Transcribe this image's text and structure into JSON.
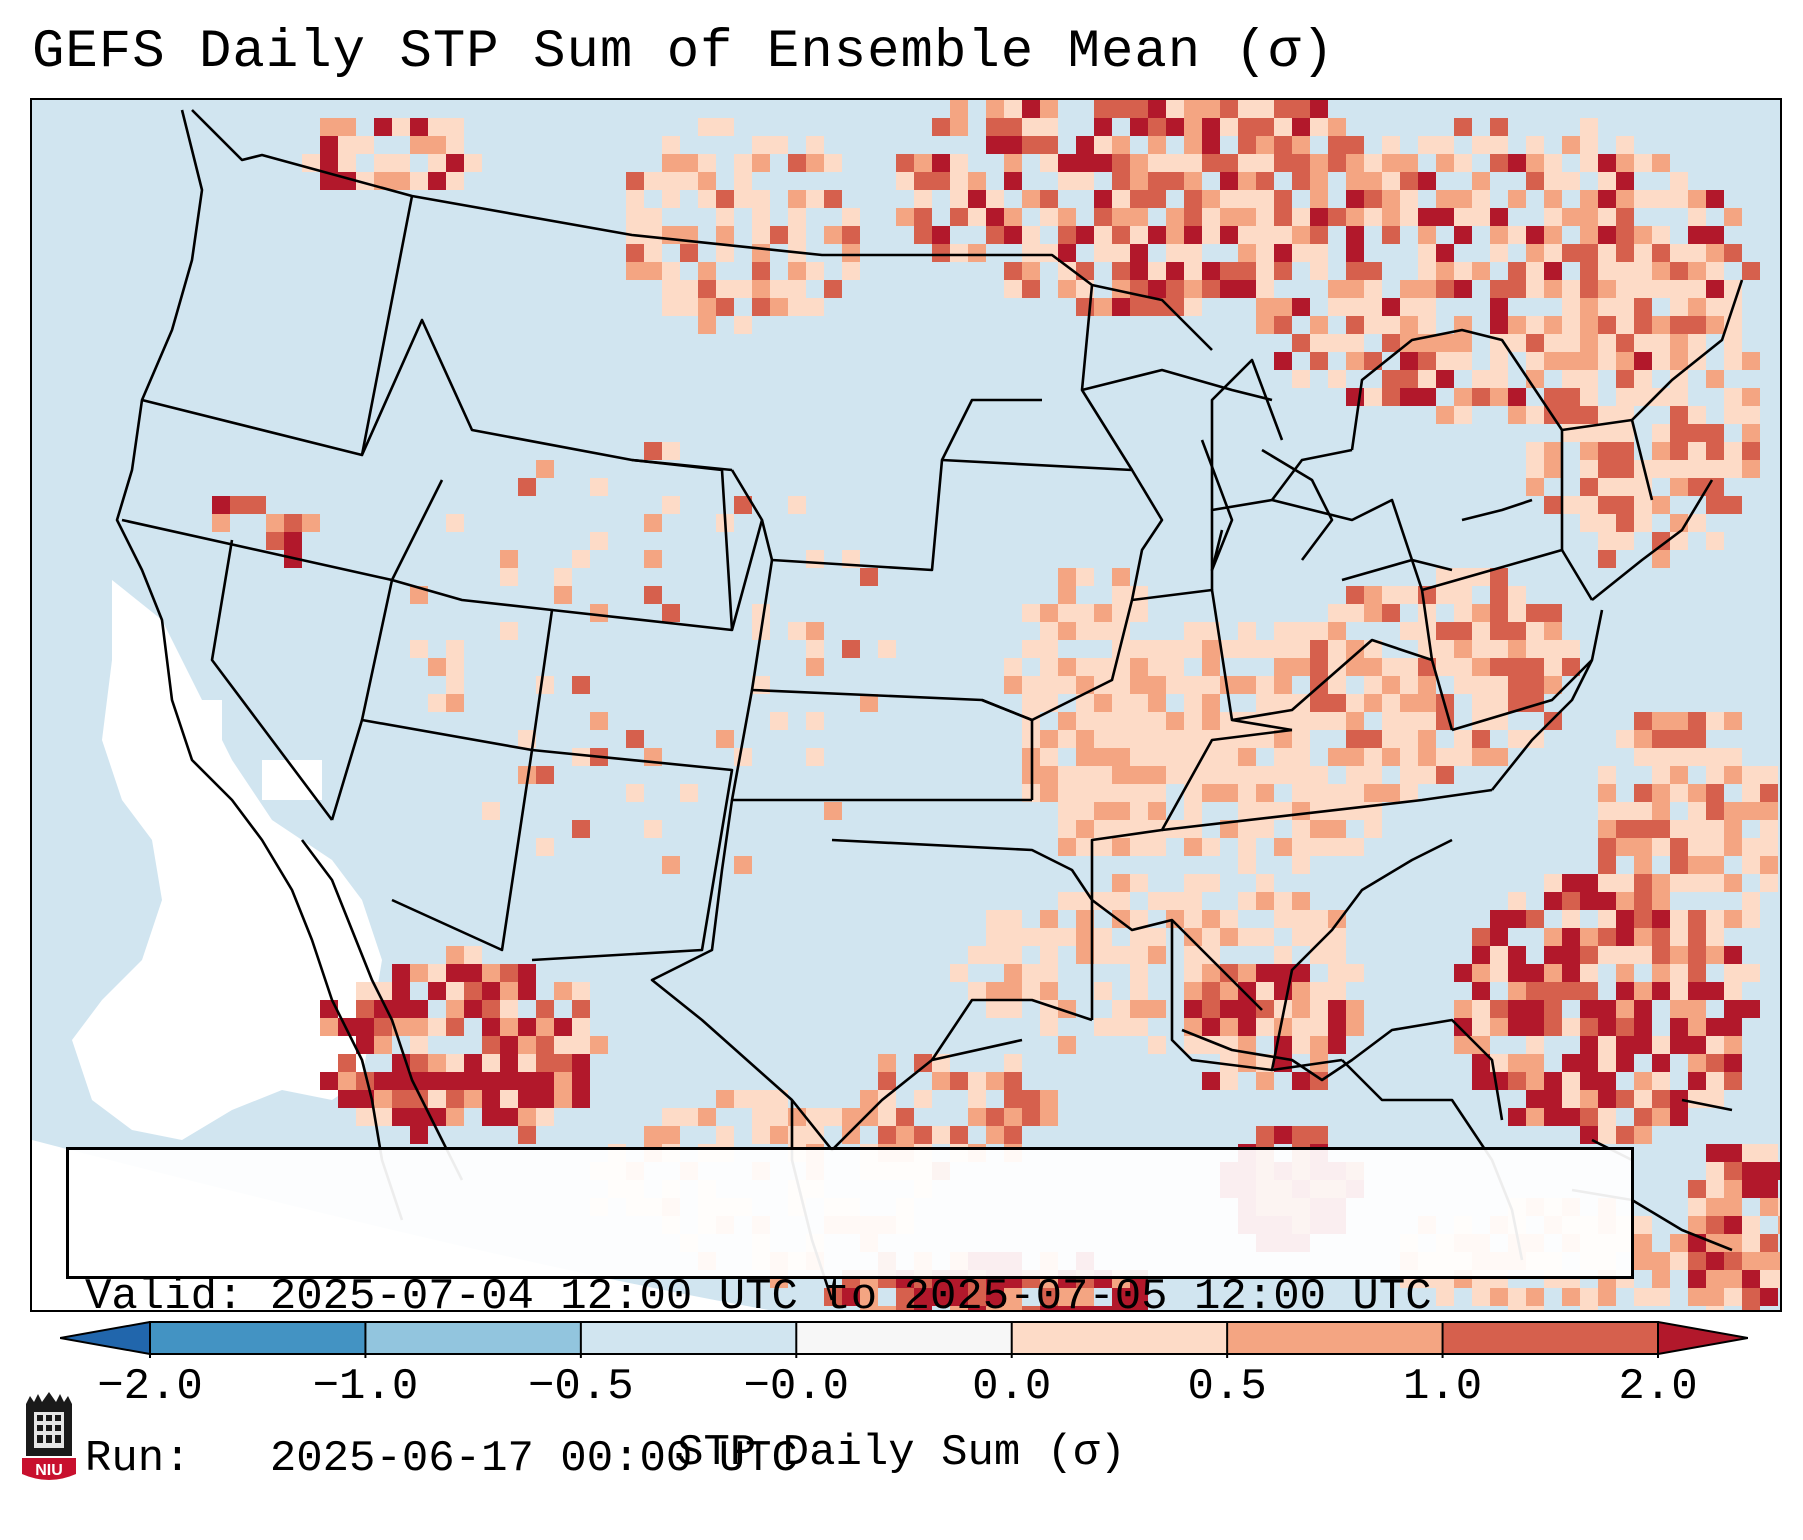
{
  "title": "GEFS Daily STP Sum of Ensemble Mean (σ)",
  "info": {
    "valid_label": "Valid:",
    "valid_value": "2025-07-04 12:00 UTC to 2025-07-05 12:00 UTC",
    "run_label": "Run:",
    "run_value": "2025-06-17 00:00 UTC"
  },
  "colorbar": {
    "label": "STP Daily Sum (σ)",
    "ticks": [
      "−2.0",
      "−1.0",
      "−0.5",
      "−0.0",
      "0.0",
      "0.5",
      "1.0",
      "2.0"
    ],
    "bins": [
      {
        "from": "−2.0",
        "to": "−1.0",
        "color": "#4393c3"
      },
      {
        "from": "−1.0",
        "to": "−0.5",
        "color": "#92c5de"
      },
      {
        "from": "−0.5",
        "to": "−0.0",
        "color": "#d1e5f0"
      },
      {
        "from": "−0.0",
        "to": "0.0",
        "color": "#f7f7f7"
      },
      {
        "from": "0.0",
        "to": "0.5",
        "color": "#fddbc7"
      },
      {
        "from": "0.5",
        "to": "1.0",
        "color": "#f4a582"
      },
      {
        "from": "1.0",
        "to": "2.0",
        "color": "#d6604d"
      }
    ],
    "under_color": "#2166ac",
    "over_color": "#b2182b"
  },
  "colors": {
    "ocean_neutral": "#d1e5f0",
    "white_area": "#ffffff",
    "light_pos": "#fddbc7",
    "mid_pos": "#f4a582",
    "strong_pos": "#d6604d",
    "max_pos": "#b2182b",
    "light_neg": "#92c5de"
  },
  "logo": {
    "text": "NIU",
    "color": "#c8102e"
  }
}
